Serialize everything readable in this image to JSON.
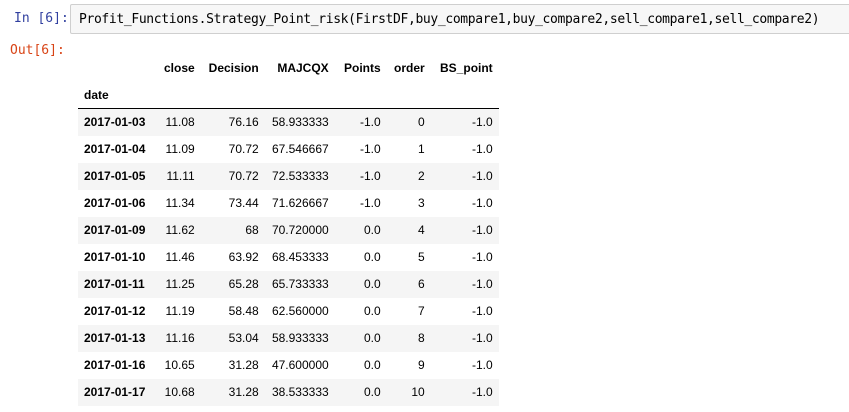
{
  "input_cell": {
    "prompt": "In [6]:",
    "code": "Profit_Functions.Strategy_Point_risk(FirstDF,buy_compare1,buy_compare2,sell_compare1,sell_compare2)"
  },
  "output_cell": {
    "prompt": "Out[6]:"
  },
  "dataframe": {
    "columns": [
      "close",
      "Decision",
      "MAJCQX",
      "Points",
      "order",
      "BS_point"
    ],
    "index_name": "date",
    "rows": [
      {
        "date": "2017-01-03",
        "close": "11.08",
        "decision": "76.16",
        "majcqx": "58.933333",
        "points": "-1.0",
        "order": "0",
        "bs_point": "-1.0"
      },
      {
        "date": "2017-01-04",
        "close": "11.09",
        "decision": "70.72",
        "majcqx": "67.546667",
        "points": "-1.0",
        "order": "1",
        "bs_point": "-1.0"
      },
      {
        "date": "2017-01-05",
        "close": "11.11",
        "decision": "70.72",
        "majcqx": "72.533333",
        "points": "-1.0",
        "order": "2",
        "bs_point": "-1.0"
      },
      {
        "date": "2017-01-06",
        "close": "11.34",
        "decision": "73.44",
        "majcqx": "71.626667",
        "points": "-1.0",
        "order": "3",
        "bs_point": "-1.0"
      },
      {
        "date": "2017-01-09",
        "close": "11.62",
        "decision": "68",
        "majcqx": "70.720000",
        "points": "0.0",
        "order": "4",
        "bs_point": "-1.0"
      },
      {
        "date": "2017-01-10",
        "close": "11.46",
        "decision": "63.92",
        "majcqx": "68.453333",
        "points": "0.0",
        "order": "5",
        "bs_point": "-1.0"
      },
      {
        "date": "2017-01-11",
        "close": "11.25",
        "decision": "65.28",
        "majcqx": "65.733333",
        "points": "0.0",
        "order": "6",
        "bs_point": "-1.0"
      },
      {
        "date": "2017-01-12",
        "close": "11.19",
        "decision": "58.48",
        "majcqx": "62.560000",
        "points": "0.0",
        "order": "7",
        "bs_point": "-1.0"
      },
      {
        "date": "2017-01-13",
        "close": "11.16",
        "decision": "53.04",
        "majcqx": "58.933333",
        "points": "0.0",
        "order": "8",
        "bs_point": "-1.0"
      },
      {
        "date": "2017-01-16",
        "close": "10.65",
        "decision": "31.28",
        "majcqx": "47.600000",
        "points": "0.0",
        "order": "9",
        "bs_point": "-1.0"
      },
      {
        "date": "2017-01-17",
        "close": "10.68",
        "decision": "31.28",
        "majcqx": "38.533333",
        "points": "0.0",
        "order": "10",
        "bs_point": "-1.0"
      }
    ]
  },
  "colors": {
    "in_prompt": "#303f9f",
    "out_prompt": "#d84315",
    "input_bg": "#f7f7f7",
    "row_stripe": "#f5f5f5"
  }
}
